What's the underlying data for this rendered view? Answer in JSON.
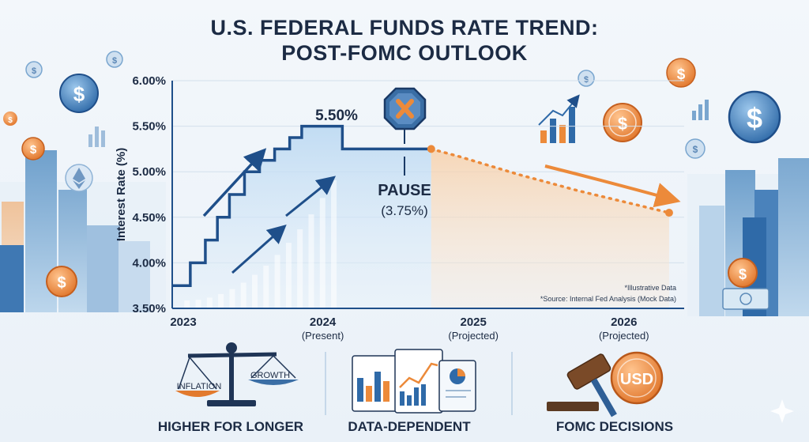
{
  "title_line1": "U.S. FEDERAL FUNDS RATE TREND:",
  "title_line2": "POST-FOMC OUTLOOK",
  "chart_data": {
    "type": "line",
    "ylabel": "Interest Rate (%)",
    "xlabel": "",
    "ylim": [
      3.5,
      6.0
    ],
    "yticks": [
      "6.00%",
      "5.50%",
      "5.00%",
      "4.50%",
      "4.00%",
      "3.50%"
    ],
    "xticks": [
      {
        "label": "2023",
        "sub": ""
      },
      {
        "label": "2024",
        "sub": "(Present)"
      },
      {
        "label": "2025",
        "sub": "(Projected)"
      },
      {
        "label": "2026",
        "sub": "(Projected)"
      }
    ],
    "series": [
      {
        "x": [
          2023.0,
          2023.12,
          2023.12,
          2023.22,
          2023.22,
          2023.3,
          2023.3,
          2023.38,
          2023.38,
          2023.48,
          2023.48,
          2023.58,
          2023.58,
          2023.68,
          2023.68,
          2023.78,
          2023.78,
          2023.86,
          2023.86,
          2023.98,
          2023.98,
          2024.13,
          2024.13,
          2024.72
        ],
        "y": [
          3.75,
          3.75,
          4.0,
          4.0,
          4.25,
          4.25,
          4.5,
          4.5,
          4.75,
          4.75,
          5.0,
          5.0,
          5.125,
          5.125,
          5.25,
          5.25,
          5.375,
          5.375,
          5.5,
          5.5,
          5.5,
          5.5,
          5.25,
          5.25
        ]
      },
      {
        "x": [
          2024.72,
          2024.9,
          2025.1,
          2025.3,
          2025.5,
          2025.7,
          2025.9,
          2026.1,
          2026.3
        ],
        "y": [
          5.25,
          5.17,
          5.07,
          4.97,
          4.88,
          4.79,
          4.71,
          4.63,
          4.55
        ],
        "style": "dotted"
      }
    ],
    "annotations": {
      "peak": "5.50%",
      "pause": "PAUSE",
      "pause_value": "(3.75%)"
    }
  },
  "notes": {
    "line1": "*Illustrative Data",
    "line2": "*Source: Internal Fed Analysis (Mock Data)"
  },
  "bottom": {
    "scale_left": "INFLATION",
    "scale_right": "GROWTH",
    "coin": "USD",
    "label1": "HIGHER FOR LONGER",
    "label2": "DATA-DEPENDENT",
    "label3": "FOMC DECISIONS"
  },
  "colors": {
    "navy": "#1f4f8a",
    "orange": "#ec8a3a",
    "light_blue": "#cfe3f5",
    "light_orange": "#fbe3cc"
  },
  "icons": [
    "dollar-coin-icon",
    "ethereum-icon",
    "skyline-icon",
    "stop-sign-icon",
    "balance-scale-icon",
    "report-charts-icon",
    "gavel-icon"
  ]
}
